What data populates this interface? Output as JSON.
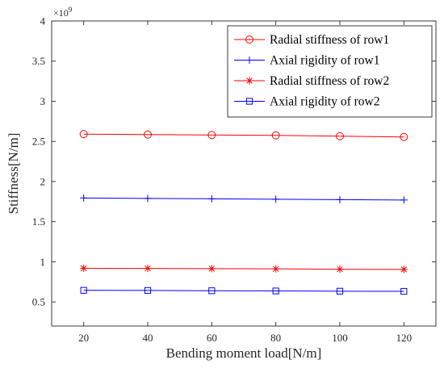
{
  "chart_data": {
    "type": "line",
    "x": [
      20,
      40,
      60,
      80,
      100,
      120
    ],
    "series": [
      {
        "name": "Radial stiffness of row1",
        "values": [
          2.59,
          2.585,
          2.58,
          2.575,
          2.565,
          2.555
        ],
        "color": "#ff0000",
        "marker": "circle"
      },
      {
        "name": "Axial rigidity of row1",
        "values": [
          1.795,
          1.79,
          1.785,
          1.78,
          1.775,
          1.77
        ],
        "color": "#0000ff",
        "marker": "plus"
      },
      {
        "name": "Radial stiffness of row2",
        "values": [
          0.92,
          0.918,
          0.915,
          0.912,
          0.908,
          0.905
        ],
        "color": "#ff0000",
        "marker": "asterisk"
      },
      {
        "name": "Axial rigidity of row2",
        "values": [
          0.645,
          0.643,
          0.64,
          0.637,
          0.634,
          0.632
        ],
        "color": "#0000ff",
        "marker": "square"
      }
    ],
    "xlabel": "Bending moment load[N/m]",
    "ylabel": "Stiffness[N/m]",
    "y_multiplier": "×10",
    "y_multiplier_exponent": "9",
    "xlim": [
      10,
      130
    ],
    "ylim": [
      0.2,
      4
    ],
    "xticks": [
      20,
      40,
      60,
      80,
      100,
      120
    ],
    "xtick_labels": [
      "20",
      "40",
      "60",
      "80",
      "100",
      "120"
    ],
    "yticks": [
      0.5,
      1,
      1.5,
      2,
      2.5,
      3,
      3.5,
      4
    ],
    "ytick_labels": [
      "0.5",
      "1",
      "1.5",
      "2",
      "2.5",
      "3",
      "3.5",
      "4"
    ],
    "grid": false,
    "legend_position": "top-right"
  }
}
